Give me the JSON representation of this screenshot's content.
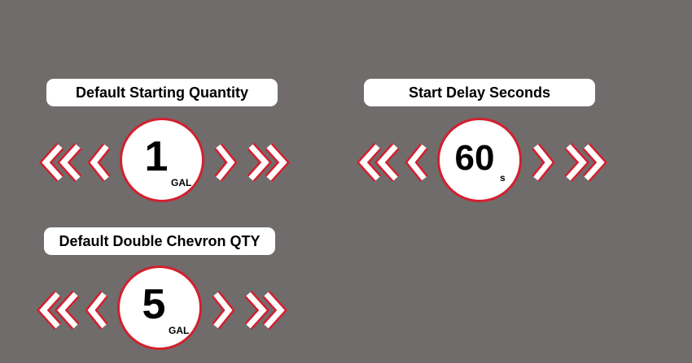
{
  "colors": {
    "background": "#706c6c",
    "accent": "#d2202f",
    "pill": "#ffffff"
  },
  "settings": [
    {
      "label": "Default Starting Quantity",
      "value": "1",
      "unit": "GAL",
      "icons": [
        "double-chevron-left-icon",
        "chevron-left-icon",
        "chevron-right-icon",
        "double-chevron-right-icon"
      ]
    },
    {
      "label": "Start Delay Seconds",
      "value": "60",
      "unit": "s",
      "icons": [
        "double-chevron-left-icon",
        "chevron-left-icon",
        "chevron-right-icon",
        "double-chevron-right-icon"
      ]
    },
    {
      "label": "Default Double Chevron QTY",
      "value": "5",
      "unit": "GAL",
      "icons": [
        "double-chevron-left-icon",
        "chevron-left-icon",
        "chevron-right-icon",
        "double-chevron-right-icon"
      ]
    }
  ]
}
